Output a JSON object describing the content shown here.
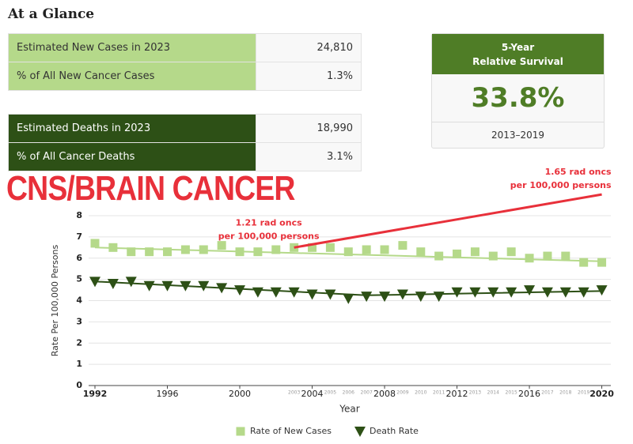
{
  "glance": {
    "title": "At a Glance",
    "cases": [
      [
        "Estimated New Cases in 2023",
        "24,810"
      ],
      [
        "% of All New Cancer Cases",
        "1.3%"
      ]
    ],
    "deaths": [
      [
        "Estimated Deaths in 2023",
        "18,990"
      ],
      [
        "% of All Cancer Deaths",
        "3.1%"
      ]
    ]
  },
  "survival": {
    "header": [
      "5-Year",
      "Relative Survival"
    ],
    "value": "33.8%",
    "period": "2013–2019"
  },
  "headline": "CNS/BRAIN CANCER",
  "chart_data": {
    "type": "scatter",
    "x_label": "Year",
    "y_label": "Rate Per 100,000 Persons",
    "x": [
      1992,
      1993,
      1994,
      1995,
      1996,
      1997,
      1998,
      1999,
      2000,
      2001,
      2002,
      2003,
      2004,
      2005,
      2006,
      2007,
      2008,
      2009,
      2010,
      2011,
      2012,
      2013,
      2014,
      2015,
      2016,
      2017,
      2018,
      2019,
      2020
    ],
    "series": [
      {
        "name": "Rate of New Cases",
        "color": "#b5d98a",
        "marker": "square",
        "values": [
          6.7,
          6.5,
          6.3,
          6.3,
          6.3,
          6.4,
          6.4,
          6.6,
          6.3,
          6.3,
          6.4,
          6.5,
          6.5,
          6.5,
          6.3,
          6.4,
          6.4,
          6.6,
          6.3,
          6.1,
          6.2,
          6.3,
          6.1,
          6.3,
          6.0,
          6.1,
          6.1,
          5.8,
          5.8
        ],
        "trend": {
          "x": [
            1992,
            2020
          ],
          "values": [
            6.5,
            5.85
          ]
        }
      },
      {
        "name": "Death Rate",
        "color": "#2d5016",
        "marker": "triangle-down",
        "values": [
          4.9,
          4.8,
          4.9,
          4.7,
          4.7,
          4.7,
          4.7,
          4.6,
          4.5,
          4.4,
          4.4,
          4.4,
          4.3,
          4.3,
          4.1,
          4.2,
          4.2,
          4.3,
          4.2,
          4.2,
          4.4,
          4.4,
          4.4,
          4.4,
          4.5,
          4.4,
          4.4,
          4.4,
          4.5
        ],
        "trend": {
          "x": [
            1992,
            2007,
            2020
          ],
          "values": [
            4.9,
            4.25,
            4.45
          ]
        }
      }
    ],
    "xlim": [
      1991.65,
      2020.5
    ],
    "xticks": [
      1992,
      1996,
      2000,
      2004,
      2008,
      2012,
      2016,
      2020
    ],
    "xticks_minor": [
      2003,
      2005,
      2006,
      2007,
      2009,
      2010,
      2011,
      2013,
      2014,
      2015,
      2017,
      2018,
      2019
    ],
    "ylim": [
      0,
      8
    ],
    "yticks": [
      0,
      1,
      2,
      3,
      4,
      5,
      6,
      7,
      8
    ],
    "grid": true,
    "annotation": {
      "color": "#e8303a",
      "x": [
        2003,
        2020
      ],
      "y": [
        6.5,
        9
      ],
      "labels": [
        [
          "1.21 rad oncs",
          "per 100,000 persons"
        ],
        [
          "1.65 rad oncs",
          "per 100,000 persons"
        ]
      ]
    }
  }
}
